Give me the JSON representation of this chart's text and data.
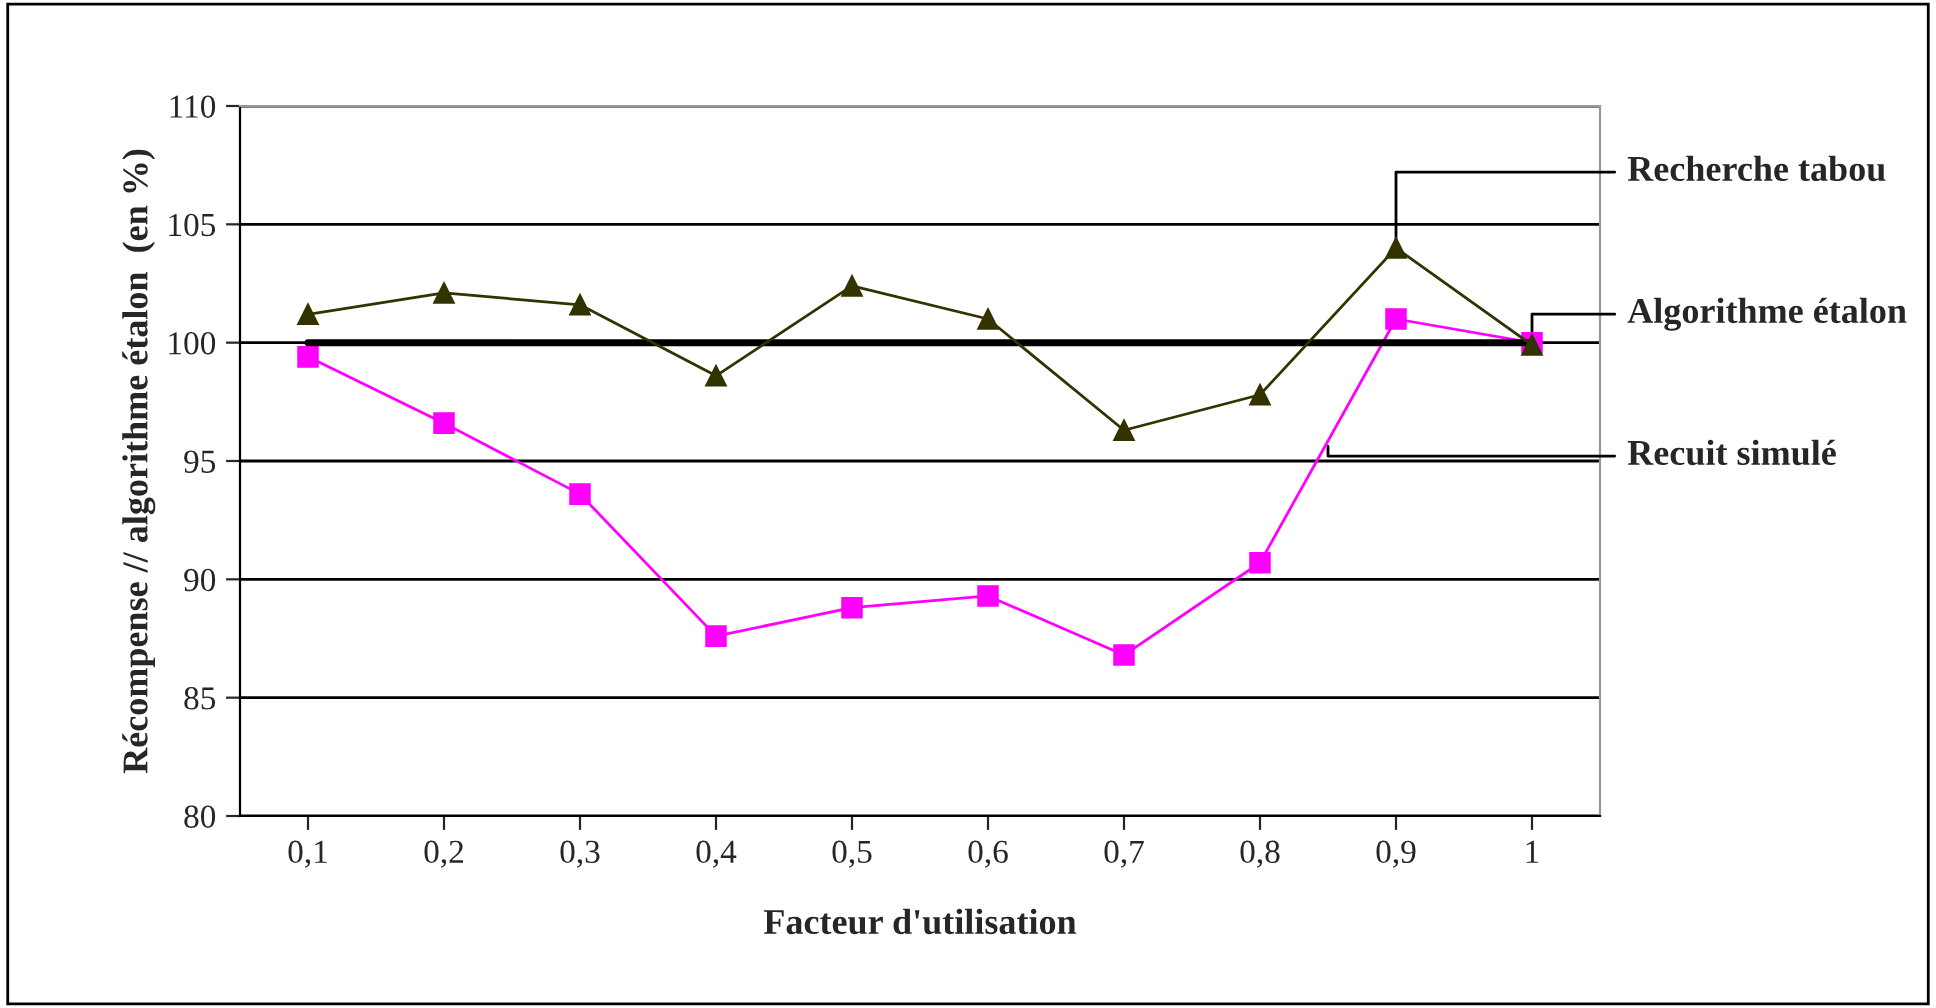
{
  "chart_data": {
    "type": "line",
    "xlabel": "Facteur d'utilisation",
    "ylabel": "Récompense // algorithme étalon  (en %)",
    "categories": [
      "0,1",
      "0,2",
      "0,3",
      "0,4",
      "0,5",
      "0,6",
      "0,7",
      "0,8",
      "0,9",
      "1"
    ],
    "series": [
      {
        "name": "Recherche tabou",
        "color": "#333300",
        "marker": "triangle",
        "values": [
          101.2,
          102.1,
          101.6,
          98.6,
          102.4,
          101.0,
          96.3,
          97.8,
          104.0,
          99.9
        ]
      },
      {
        "name": "Algorithme étalon",
        "color": "#000000",
        "marker": "none",
        "values": [
          100,
          100,
          100,
          100,
          100,
          100,
          100,
          100,
          100,
          100
        ]
      },
      {
        "name": "Recuit simulé",
        "color": "#ff00ff",
        "marker": "square",
        "values": [
          99.4,
          96.6,
          93.6,
          87.6,
          88.8,
          89.3,
          86.8,
          90.7,
          101.0,
          100
        ]
      }
    ],
    "ylim": [
      80,
      110
    ],
    "yticks": [
      80,
      85,
      90,
      95,
      100,
      105,
      110
    ],
    "grid": "y",
    "legend": "right"
  }
}
